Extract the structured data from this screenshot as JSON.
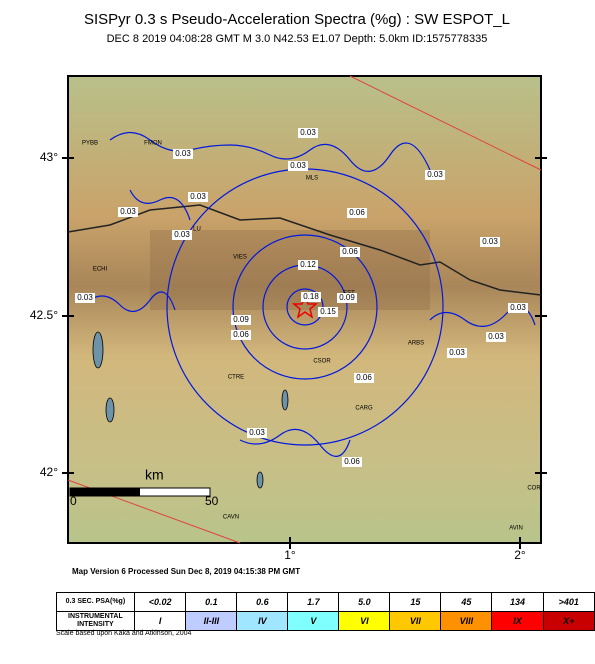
{
  "header": {
    "title": "SISPyr 0.3 s Pseudo-Acceleration Spectra (%g) : SW ESPOT_L",
    "subtitle": "DEC 8 2019 04:08:28  GMT   M 3.0    N42.53 E1.07    Depth: 5.0km    ID:1575778335"
  },
  "map": {
    "lat_labels": [
      "43°",
      "42.5°",
      "42°"
    ],
    "lon_labels": [
      "1°",
      "2°"
    ],
    "places": [
      "PYBB",
      "FMON",
      "MLS",
      "LU",
      "VIES",
      "ECHI",
      "EST",
      "ARBS",
      "CSOR",
      "CTRE",
      "CARG",
      "CAVN",
      "COR",
      "AVIN"
    ],
    "contour_labels": [
      "0.03",
      "0.03",
      "0.03",
      "0.03",
      "0.03",
      "0.03",
      "0.03",
      "0.03",
      "0.03",
      "0.03",
      "0.03",
      "0.03",
      "0.03",
      "0.06",
      "0.06",
      "0.06",
      "0.06",
      "0.06",
      "0.09",
      "0.09",
      "0.12",
      "0.15",
      "0.18"
    ],
    "scale": {
      "unit": "km",
      "start": "0",
      "end": "50"
    }
  },
  "footer": {
    "processed": "Map Version 6 Processed Sun Dec  8, 2019 04:15:38 PM GMT",
    "note": "Scale based upon Kaka and Atkinson, 2004"
  },
  "legend": {
    "psa_header": "0.3 SEC. PSA(%g)",
    "psa": [
      "<0.02",
      "0.1",
      "0.6",
      "1.7",
      "5.0",
      "15",
      "45",
      "134",
      ">401"
    ],
    "intensity_header": "INSTRUMENTAL INTENSITY",
    "intensity": [
      "I",
      "II-III",
      "IV",
      "V",
      "VI",
      "VII",
      "VIII",
      "IX",
      "X+"
    ]
  }
}
